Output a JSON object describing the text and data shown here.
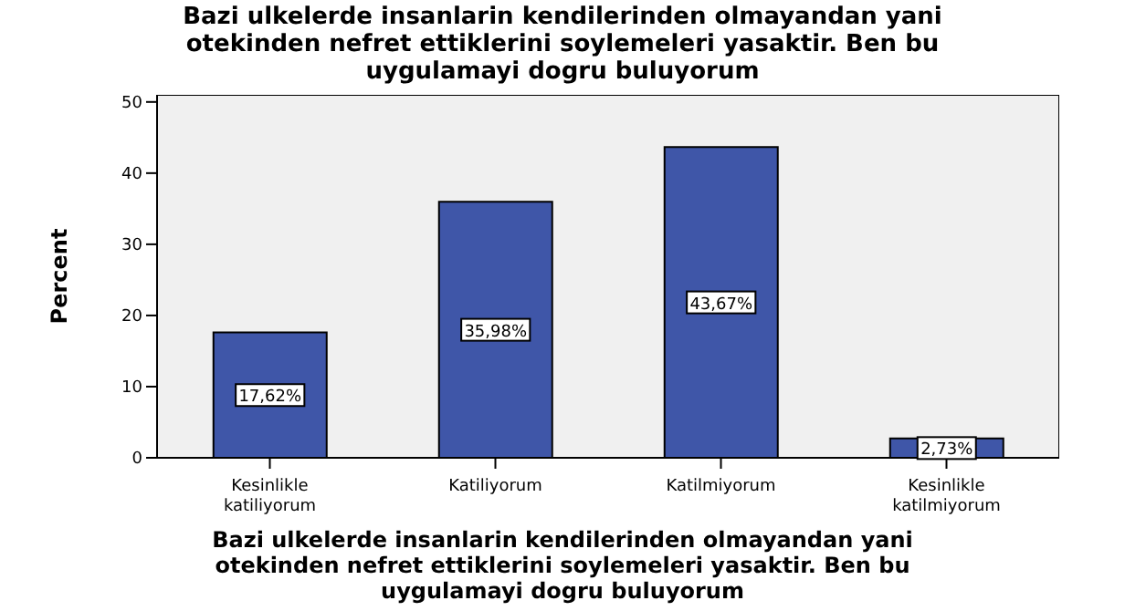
{
  "chart_data": {
    "type": "bar",
    "title": "Bazi ulkelerde insanlarin kendilerinden olmayandan yani otekinden nefret ettiklerini soylemeleri yasaktir.  Ben bu uygulamayi dogru buluyorum",
    "xlabel": "Bazi ulkelerde insanlarin kendilerinden olmayandan yani otekinden nefret ettiklerini soylemeleri yasaktir.  Ben bu uygulamayi dogru buluyorum",
    "ylabel": "Percent",
    "categories": [
      "Kesinlikle katiliyorum",
      "Katiliyorum",
      "Katilmiyorum",
      "Kesinlikle katilmiyorum"
    ],
    "values": [
      17.62,
      35.98,
      43.67,
      2.73
    ],
    "value_labels": [
      "17,62%",
      "35,98%",
      "43,67%",
      "2,73%"
    ],
    "color": "#3f56a8",
    "ylim": [
      0,
      51
    ],
    "yticks": [
      0,
      10,
      20,
      30,
      40,
      50
    ],
    "grid": false
  }
}
